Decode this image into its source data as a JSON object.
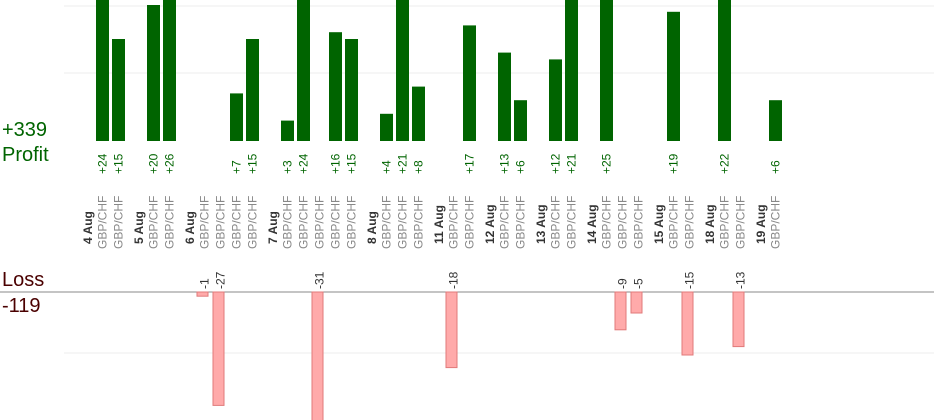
{
  "summary": {
    "profit_total": "+339",
    "profit_label": "Profit",
    "loss_label": "Loss",
    "loss_total": "-119"
  },
  "chart_data": {
    "type": "bar",
    "colors": {
      "profit": "#006400",
      "loss": "#ffaaaa",
      "loss_stroke": "#e07a7a"
    },
    "days": [
      {
        "date": "4 Aug",
        "trades": [
          {
            "pair": "GBP/CHF",
            "profit": 24
          },
          {
            "pair": "GBP/CHF",
            "profit": 15
          }
        ]
      },
      {
        "date": "5 Aug",
        "trades": [
          {
            "pair": "GBP/CHF",
            "profit": 20
          },
          {
            "pair": "GBP/CHF",
            "profit": 26
          }
        ]
      },
      {
        "date": "6 Aug",
        "trades": [
          {
            "pair": "GBP/CHF",
            "loss": -1
          },
          {
            "pair": "GBP/CHF",
            "loss": -27
          },
          {
            "pair": "GBP/CHF",
            "profit": 7
          },
          {
            "pair": "GBP/CHF",
            "profit": 15
          }
        ]
      },
      {
        "date": "7 Aug",
        "trades": [
          {
            "pair": "GBP/CHF",
            "profit": 3
          },
          {
            "pair": "GBP/CHF",
            "profit": 24
          },
          {
            "pair": "GBP/CHF",
            "loss": -31
          },
          {
            "pair": "GBP/CHF",
            "profit": 16
          },
          {
            "pair": "GBP/CHF",
            "profit": 15
          }
        ]
      },
      {
        "date": "8 Aug",
        "trades": [
          {
            "pair": "GBP/CHF",
            "profit": 4
          },
          {
            "pair": "GBP/CHF",
            "profit": 21
          },
          {
            "pair": "GBP/CHF",
            "profit": 8
          }
        ]
      },
      {
        "date": "11 Aug",
        "trades": [
          {
            "pair": "GBP/CHF",
            "loss": -18
          },
          {
            "pair": "GBP/CHF",
            "profit": 17
          }
        ]
      },
      {
        "date": "12 Aug",
        "trades": [
          {
            "pair": "GBP/CHF",
            "profit": 13
          },
          {
            "pair": "GBP/CHF",
            "profit": 6
          }
        ]
      },
      {
        "date": "13 Aug",
        "trades": [
          {
            "pair": "GBP/CHF",
            "profit": 12
          },
          {
            "pair": "GBP/CHF",
            "profit": 21
          }
        ]
      },
      {
        "date": "14 Aug",
        "trades": [
          {
            "pair": "GBP/CHF",
            "profit": 25
          },
          {
            "pair": "GBP/CHF",
            "loss": -9
          },
          {
            "pair": "GBP/CHF",
            "loss": -5
          }
        ]
      },
      {
        "date": "15 Aug",
        "trades": [
          {
            "pair": "GBP/CHF",
            "profit": 19
          },
          {
            "pair": "GBP/CHF",
            "loss": -15
          }
        ]
      },
      {
        "date": "18 Aug",
        "trades": [
          {
            "pair": "GBP/CHF",
            "profit": 22
          },
          {
            "pair": "GBP/CHF",
            "loss": -13
          }
        ]
      },
      {
        "date": "19 Aug",
        "trades": [
          {
            "pair": "GBP/CHF",
            "profit": 6
          }
        ]
      }
    ]
  }
}
